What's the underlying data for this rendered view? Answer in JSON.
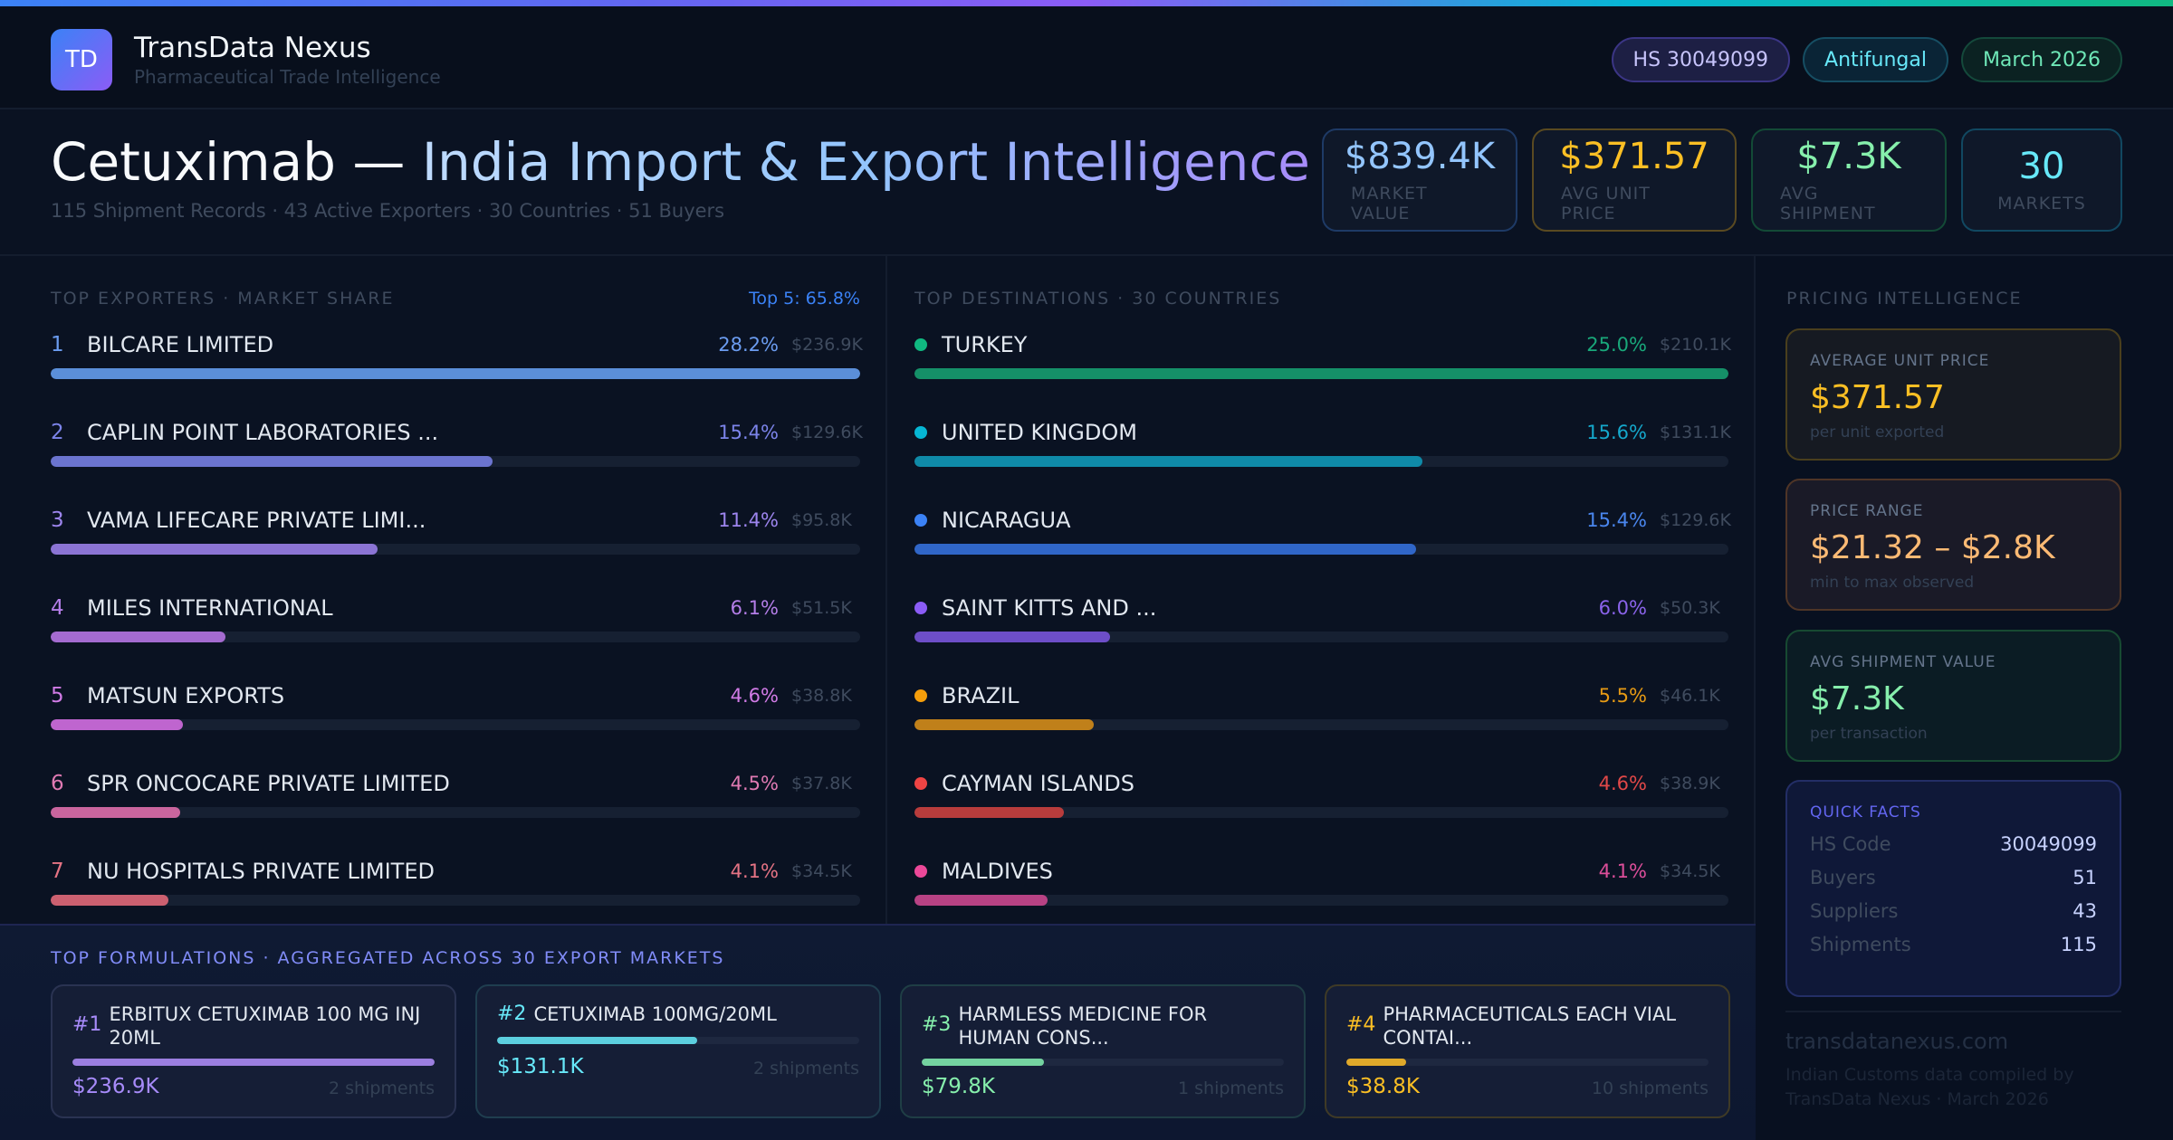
{
  "brand": {
    "logo_initials": "TD",
    "name": "TransData Nexus",
    "tagline": "Pharmaceutical Trade Intelligence"
  },
  "pills": [
    {
      "label": "HS 30049099"
    },
    {
      "label": "Antifungal"
    },
    {
      "label": "March 2026"
    }
  ],
  "hero": {
    "title_product": "Cetuximab —",
    "title_rest": "India Import & Export Intelligence",
    "subtitle": "115 Shipment Records · 43 Active Exporters · 30 Countries · 51 Buyers"
  },
  "kpis": [
    {
      "value": "$839.4K",
      "label": "MARKET VALUE"
    },
    {
      "value": "$371.57",
      "label": "AVG UNIT PRICE"
    },
    {
      "value": "$7.3K",
      "label": "AVG SHIPMENT"
    },
    {
      "value": "30",
      "label": "MARKETS"
    }
  ],
  "exporters": {
    "title": "TOP EXPORTERS · MARKET SHARE",
    "top5": "Top 5: 65.8%",
    "items": [
      {
        "rank": "1",
        "name": "BILCARE LIMITED",
        "pct": "28.2%",
        "value": "$236.9K",
        "share": 28.2,
        "color": "#5b8fd9",
        "accent": "#6b9cf0"
      },
      {
        "rank": "2",
        "name": "CAPLIN POINT LABORATORIES ...",
        "pct": "15.4%",
        "value": "$129.6K",
        "share": 15.4,
        "color": "#6b74cf",
        "accent": "#7c84ea"
      },
      {
        "rank": "3",
        "name": "VAMA LIFECARE PRIVATE LIMI...",
        "pct": "11.4%",
        "value": "$95.8K",
        "share": 11.4,
        "color": "#8b74d4",
        "accent": "#9d85ee"
      },
      {
        "rank": "4",
        "name": "MILES INTERNATIONAL",
        "pct": "6.1%",
        "value": "$51.5K",
        "share": 6.1,
        "color": "#a46bd0",
        "accent": "#b47ee8"
      },
      {
        "rank": "5",
        "name": "MATSUN EXPORTS",
        "pct": "4.6%",
        "value": "$38.8K",
        "share": 4.6,
        "color": "#bf65cf",
        "accent": "#d17be6"
      },
      {
        "rank": "6",
        "name": "SPR ONCOCARE PRIVATE LIMITED",
        "pct": "4.5%",
        "value": "$37.8K",
        "share": 4.5,
        "color": "#c9659e",
        "accent": "#e07ab3"
      },
      {
        "rank": "7",
        "name": "NU HOSPITALS PRIVATE LIMITED",
        "pct": "4.1%",
        "value": "$34.5K",
        "share": 4.1,
        "color": "#cc6070",
        "accent": "#e57384"
      }
    ]
  },
  "destinations": {
    "title": "TOP DESTINATIONS · 30 COUNTRIES",
    "items": [
      {
        "name": "TURKEY",
        "pct": "25.0%",
        "value": "$210.1K",
        "share": 25.0,
        "color": "#159068",
        "dot": "#10b981",
        "accent": "#19a87a"
      },
      {
        "name": "UNITED KINGDOM",
        "pct": "15.6%",
        "value": "$131.1K",
        "share": 15.6,
        "color": "#0f8aa8",
        "dot": "#06b6d4",
        "accent": "#15a8cc"
      },
      {
        "name": "NICARAGUA",
        "pct": "15.4%",
        "value": "$129.6K",
        "share": 15.4,
        "color": "#3066c8",
        "dot": "#3b82f6",
        "accent": "#4a86ee"
      },
      {
        "name": "SAINT KITTS AND ...",
        "pct": "6.0%",
        "value": "$50.3K",
        "share": 6.0,
        "color": "#6d4ec8",
        "dot": "#8b5cf6",
        "accent": "#8a63ea"
      },
      {
        "name": "BRAZIL",
        "pct": "5.5%",
        "value": "$46.1K",
        "share": 5.5,
        "color": "#c0801a",
        "dot": "#f59e0b",
        "accent": "#e69a14"
      },
      {
        "name": "CAYMAN ISLANDS",
        "pct": "4.6%",
        "value": "$38.9K",
        "share": 4.6,
        "color": "#b83c3c",
        "dot": "#ef4444",
        "accent": "#e14848"
      },
      {
        "name": "MALDIVES",
        "pct": "4.1%",
        "value": "$34.5K",
        "share": 4.1,
        "color": "#b84284",
        "dot": "#ec4899",
        "accent": "#dc4e9a"
      }
    ]
  },
  "pricing": {
    "title": "PRICING INTELLIGENCE",
    "cards": [
      {
        "title": "AVERAGE UNIT PRICE",
        "value": "$371.57",
        "sub": "per unit exported"
      },
      {
        "title": "PRICE RANGE",
        "value": "$21.32 – $2.8K",
        "sub": "min to max observed"
      },
      {
        "title": "AVG SHIPMENT VALUE",
        "value": "$7.3K",
        "sub": "per transaction"
      }
    ],
    "quick_facts": {
      "title": "QUICK FACTS",
      "rows": [
        {
          "key": "HS Code",
          "value": "30049099"
        },
        {
          "key": "Buyers",
          "value": "51"
        },
        {
          "key": "Suppliers",
          "value": "43"
        },
        {
          "key": "Shipments",
          "value": "115"
        }
      ]
    },
    "site": "transdatanexus.com",
    "footnote": "Indian Customs data compiled by TransData Nexus · March 2026"
  },
  "formulations": {
    "title": "TOP FORMULATIONS · AGGREGATED ACROSS 30 EXPORT MARKETS",
    "items": [
      {
        "rank": "#1",
        "name": "ERBITUX CETUXIMAB 100 MG INJ 20ML",
        "value": "$236.9K",
        "shipments": "2 shipments",
        "share": 100,
        "color": "#9b7fe0",
        "accent": "#a78bfa"
      },
      {
        "rank": "#2",
        "name": "CETUXIMAB 100MG/20ML",
        "value": "$131.1K",
        "shipments": "2 shipments",
        "share": 55.3,
        "color": "#5ccfdf",
        "accent": "#67e8f9"
      },
      {
        "rank": "#3",
        "name": "HARMLESS MEDICINE FOR HUMAN CONS...",
        "value": "$79.8K",
        "shipments": "1 shipments",
        "share": 33.7,
        "color": "#74d3a0",
        "accent": "#86efac"
      },
      {
        "rank": "#4",
        "name": "PHARMACEUTICALS EACH VIAL CONTAI...",
        "value": "$38.8K",
        "shipments": "10 shipments",
        "share": 16.4,
        "color": "#e0a92a",
        "accent": "#fbbf24"
      }
    ]
  }
}
